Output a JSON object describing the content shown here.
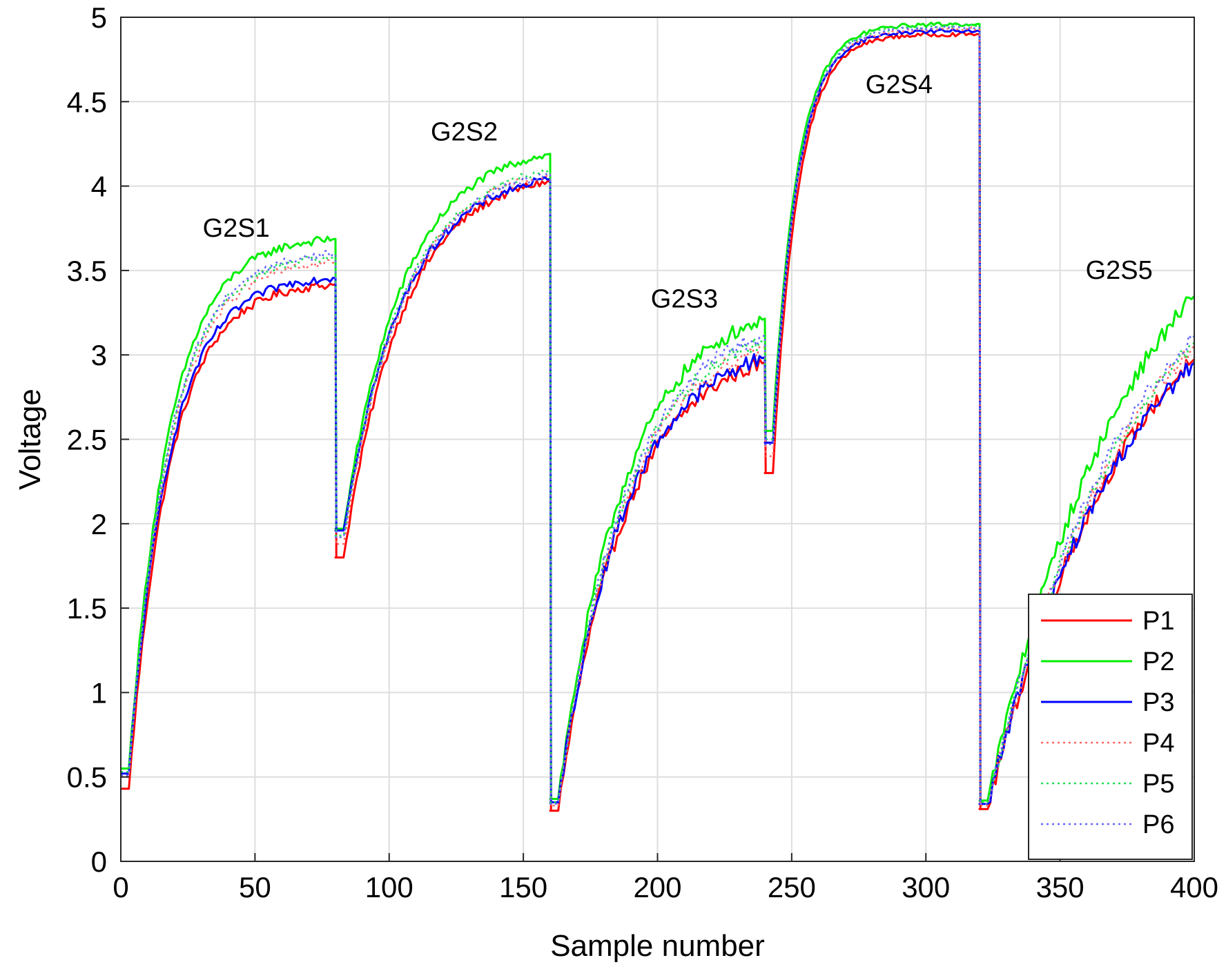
{
  "chart_data": {
    "type": "line",
    "title": "",
    "xlabel": "Sample number",
    "ylabel": "Voltage",
    "xlim": [
      0,
      400
    ],
    "ylim": [
      0,
      5
    ],
    "xticks": [
      0,
      50,
      100,
      150,
      200,
      250,
      300,
      350,
      400
    ],
    "yticks": [
      0,
      0.5,
      1,
      1.5,
      2,
      2.5,
      3,
      3.5,
      4,
      4.5,
      5
    ],
    "ytick_labels": [
      "0",
      "0.5",
      "1",
      "1.5",
      "2",
      "2.5",
      "3",
      "3.5",
      "4",
      "4.5",
      "5"
    ],
    "grid": true,
    "legend_position": "bottom-right",
    "segment_boundaries": [
      0,
      80,
      160,
      240,
      320,
      400
    ],
    "annotations": [
      {
        "text": "G2S1",
        "x": 43,
        "y": 3.7
      },
      {
        "text": "G2S2",
        "x": 128,
        "y": 4.27
      },
      {
        "text": "G2S3",
        "x": 210,
        "y": 3.28
      },
      {
        "text": "G2S4",
        "x": 290,
        "y": 4.55
      },
      {
        "text": "G2S5",
        "x": 372,
        "y": 3.45
      }
    ],
    "series": [
      {
        "name": "P1",
        "color": "#ff0000",
        "style": "solid",
        "segments": [
          {
            "start": 0.43,
            "min": 0.43,
            "end": 3.42
          },
          {
            "start": 1.8,
            "min": 1.8,
            "end": 4.04
          },
          {
            "start": 0.3,
            "min": 0.3,
            "end": 2.97
          },
          {
            "start": 2.3,
            "min": 2.3,
            "end": 4.9
          },
          {
            "start": 0.31,
            "min": 0.31,
            "end": 3.02
          }
        ]
      },
      {
        "name": "P2",
        "color": "#00ee00",
        "style": "solid",
        "segments": [
          {
            "start": 0.55,
            "min": 0.55,
            "end": 3.69
          },
          {
            "start": 1.97,
            "min": 1.97,
            "end": 4.2
          },
          {
            "start": 0.37,
            "min": 0.37,
            "end": 3.23
          },
          {
            "start": 2.55,
            "min": 2.55,
            "end": 4.96
          },
          {
            "start": 0.36,
            "min": 0.36,
            "end": 3.4
          }
        ]
      },
      {
        "name": "P3",
        "color": "#0000ff",
        "style": "solid",
        "segments": [
          {
            "start": 0.52,
            "min": 0.52,
            "end": 3.46
          },
          {
            "start": 1.96,
            "min": 1.96,
            "end": 4.05
          },
          {
            "start": 0.35,
            "min": 0.35,
            "end": 3.0
          },
          {
            "start": 2.48,
            "min": 2.48,
            "end": 4.92
          },
          {
            "start": 0.34,
            "min": 0.34,
            "end": 3.0
          }
        ]
      },
      {
        "name": "P4",
        "color": "#ff6666",
        "style": "dotted",
        "segments": [
          {
            "start": 0.5,
            "min": 0.5,
            "end": 3.55
          },
          {
            "start": 1.88,
            "min": 1.88,
            "end": 4.08
          },
          {
            "start": 0.33,
            "min": 0.33,
            "end": 3.06
          },
          {
            "start": 2.4,
            "min": 2.4,
            "end": 4.93
          },
          {
            "start": 0.33,
            "min": 0.33,
            "end": 3.1
          }
        ]
      },
      {
        "name": "P5",
        "color": "#22dd55",
        "style": "dotted",
        "segments": [
          {
            "start": 0.53,
            "min": 0.53,
            "end": 3.58
          },
          {
            "start": 1.93,
            "min": 1.93,
            "end": 4.1
          },
          {
            "start": 0.35,
            "min": 0.35,
            "end": 3.1
          },
          {
            "start": 2.5,
            "min": 2.5,
            "end": 4.95
          },
          {
            "start": 0.35,
            "min": 0.35,
            "end": 3.12
          }
        ]
      },
      {
        "name": "P6",
        "color": "#6666ff",
        "style": "dotted",
        "segments": [
          {
            "start": 0.51,
            "min": 0.51,
            "end": 3.6
          },
          {
            "start": 1.92,
            "min": 1.92,
            "end": 4.08
          },
          {
            "start": 0.34,
            "min": 0.34,
            "end": 3.13
          },
          {
            "start": 2.47,
            "min": 2.47,
            "end": 4.94
          },
          {
            "start": 0.34,
            "min": 0.34,
            "end": 3.16
          }
        ]
      }
    ]
  }
}
